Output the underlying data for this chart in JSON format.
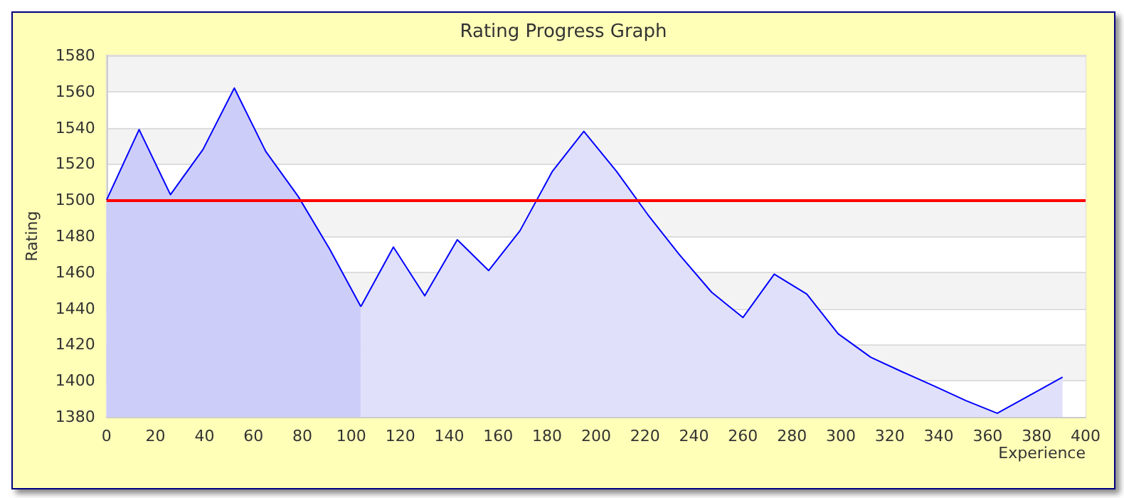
{
  "chart_data": {
    "type": "area",
    "title": "Rating Progress Graph",
    "xlabel": "Experience",
    "ylabel": "Rating",
    "series": [
      {
        "color": "#cdcdf9",
        "x": [
          0,
          13.3,
          26.1,
          39.4,
          52.2,
          65,
          78.3,
          91.1,
          103.9
        ],
        "values": [
          1500,
          1539,
          1503,
          1528,
          1562,
          1527,
          1502,
          1473,
          1441
        ]
      },
      {
        "color": "#e0e0fa",
        "x": [
          103.9,
          117.2,
          130,
          143.3,
          156.1,
          168.9,
          182.2,
          195,
          208.3,
          221.1,
          233.9,
          247.2,
          260,
          272.8,
          286.1,
          298.9,
          312.2,
          325,
          338.3,
          351.1,
          363.9,
          377.2,
          390.6
        ],
        "values": [
          1441,
          1474,
          1447,
          1478,
          1461,
          1483,
          1516,
          1538,
          1516,
          1492,
          1470,
          1449,
          1435,
          1459,
          1448,
          1426,
          1413,
          1405,
          1397,
          1389,
          1382,
          1392,
          1402
        ]
      }
    ],
    "xlim": [
      0,
      400
    ],
    "xticks": [
      0,
      20,
      40,
      60,
      80,
      100,
      120,
      140,
      160,
      180,
      200,
      220,
      240,
      260,
      280,
      300,
      320,
      340,
      360,
      380,
      400
    ],
    "ylim": [
      1380,
      1580
    ],
    "yticks": [
      1380,
      1400,
      1420,
      1440,
      1460,
      1480,
      1500,
      1520,
      1540,
      1560,
      1580
    ],
    "ref_lines": [
      {
        "axis": "y",
        "value": 1500,
        "color": "#ff0000",
        "line_style": "solid"
      }
    ],
    "grid": "y",
    "line_style": "solid",
    "marker": "none"
  }
}
